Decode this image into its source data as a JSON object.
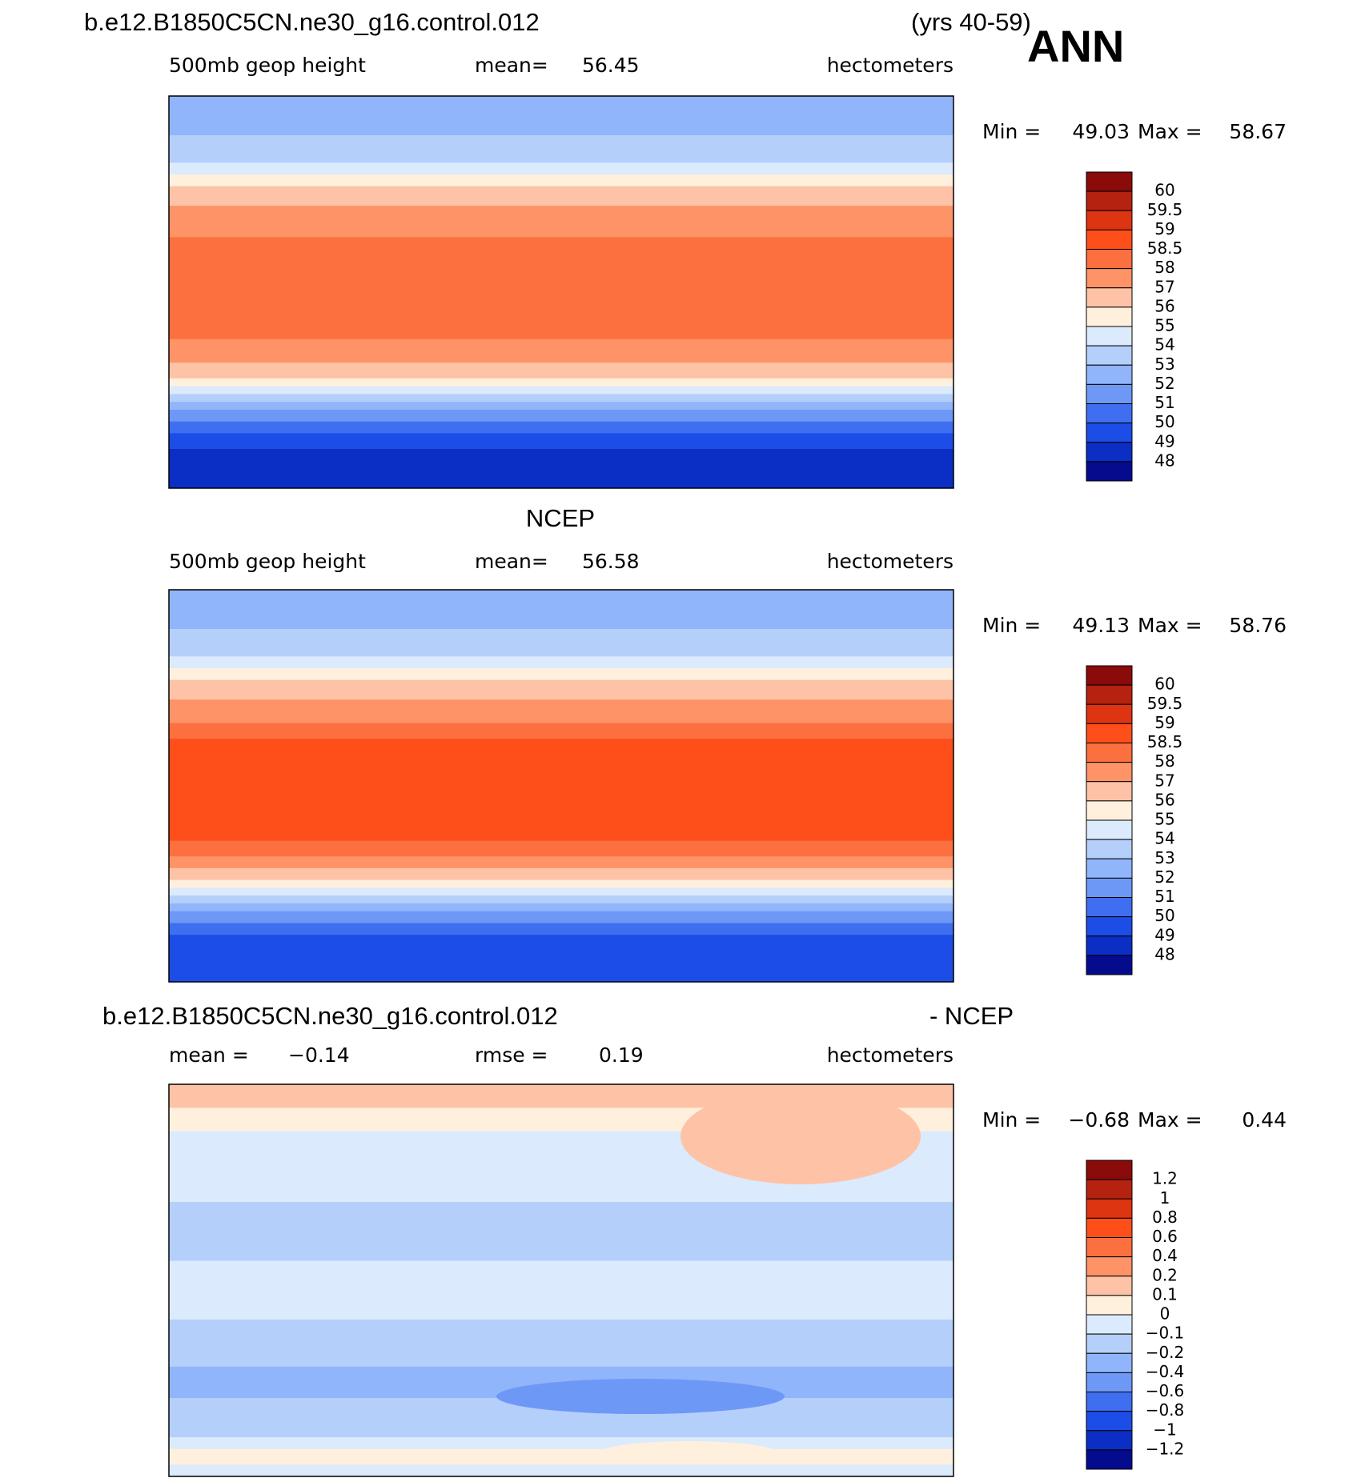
{
  "header": {
    "title": "b.e12.B1850C5CN.ne30_g16.control.012",
    "years": "(yrs 40-59)",
    "season": "ANN"
  },
  "panels": [
    {
      "left_label": "500mb geop height",
      "center_label": "mean=",
      "center_value": "56.45",
      "units": "hectometers",
      "min_label": "Min =",
      "min": "49.03",
      "max_label": "Max =",
      "max": "58.67",
      "colorbar": {
        "labels": [
          "60",
          "59.5",
          "59",
          "58.5",
          "58",
          "57",
          "56",
          "55",
          "54",
          "53",
          "52",
          "51",
          "50",
          "49",
          "48"
        ],
        "colors": [
          "#8b0a0a",
          "#b5220f",
          "#dd3412",
          "#fe4f1b",
          "#fc7040",
          "#fd9366",
          "#fec3a6",
          "#fff0dd",
          "#dbeafc",
          "#b5cffb",
          "#91b5fb",
          "#6e98f6",
          "#3f6ff0",
          "#1c4de6",
          "#0b2ec4",
          "#040b8c"
        ]
      }
    },
    {
      "title": "NCEP",
      "left_label": "500mb geop height",
      "center_label": "mean=",
      "center_value": "56.58",
      "units": "hectometers",
      "min_label": "Min =",
      "min": "49.13",
      "max_label": "Max =",
      "max": "58.76",
      "colorbar": {
        "labels": [
          "60",
          "59.5",
          "59",
          "58.5",
          "58",
          "57",
          "56",
          "55",
          "54",
          "53",
          "52",
          "51",
          "50",
          "49",
          "48"
        ],
        "colors": [
          "#8b0a0a",
          "#b5220f",
          "#dd3412",
          "#fe4f1b",
          "#fc7040",
          "#fd9366",
          "#fec3a6",
          "#fff0dd",
          "#dbeafc",
          "#b5cffb",
          "#91b5fb",
          "#6e98f6",
          "#3f6ff0",
          "#1c4de6",
          "#0b2ec4",
          "#040b8c"
        ]
      }
    },
    {
      "title": "b.e12.B1850C5CN.ne30_g16.control.012",
      "title_right": "- NCEP",
      "left_label": "mean =",
      "left_value": "−0.14",
      "center_label": "rmse =",
      "center_value": "0.19",
      "units": "hectometers",
      "min_label": "Min =",
      "min": "−0.68",
      "max_label": "Max =",
      "max": "0.44",
      "colorbar": {
        "labels": [
          "1.2",
          "1",
          "0.8",
          "0.6",
          "0.4",
          "0.2",
          "0.1",
          "0",
          "−0.1",
          "−0.2",
          "−0.4",
          "−0.6",
          "−0.8",
          "−1",
          "−1.2"
        ],
        "colors": [
          "#8b0a0a",
          "#b5220f",
          "#dd3412",
          "#fe4f1b",
          "#fc7040",
          "#fd9366",
          "#fec3a6",
          "#fff0dd",
          "#dbeafc",
          "#b5cffb",
          "#91b5fb",
          "#6e98f6",
          "#3f6ff0",
          "#1c4de6",
          "#0b2ec4",
          "#040b8c"
        ]
      }
    }
  ]
}
